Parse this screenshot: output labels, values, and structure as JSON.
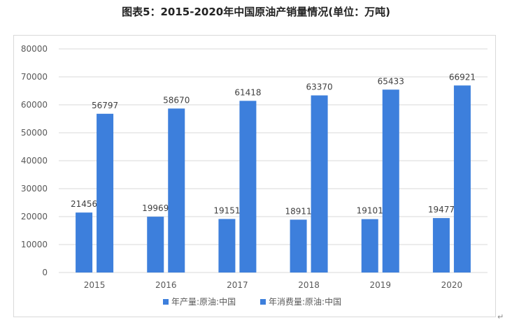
{
  "title": "图表5：2015-2020年中国原油产销量情况(单位：万吨)",
  "colors": {
    "bar": "#3d7fdc",
    "grid": "#d9d9d9",
    "axis_text": "#595959",
    "label_text": "#404040"
  },
  "chart_data": {
    "type": "bar",
    "title": "图表5：2015-2020年中国原油产销量情况(单位：万吨)",
    "categories": [
      "2015",
      "2016",
      "2017",
      "2018",
      "2019",
      "2020"
    ],
    "series": [
      {
        "name": "年产量:原油:中国",
        "values": [
          21456,
          19969,
          19151,
          18911,
          19101,
          19477
        ]
      },
      {
        "name": "年消费量:原油:中国",
        "values": [
          56797,
          58670,
          61418,
          63370,
          65433,
          66921
        ]
      }
    ],
    "ylim": [
      0,
      80000
    ],
    "yticks": [
      "0",
      "10000",
      "20000",
      "30000",
      "40000",
      "50000",
      "60000",
      "70000",
      "80000"
    ],
    "grid": true,
    "legend_position": "bottom"
  }
}
